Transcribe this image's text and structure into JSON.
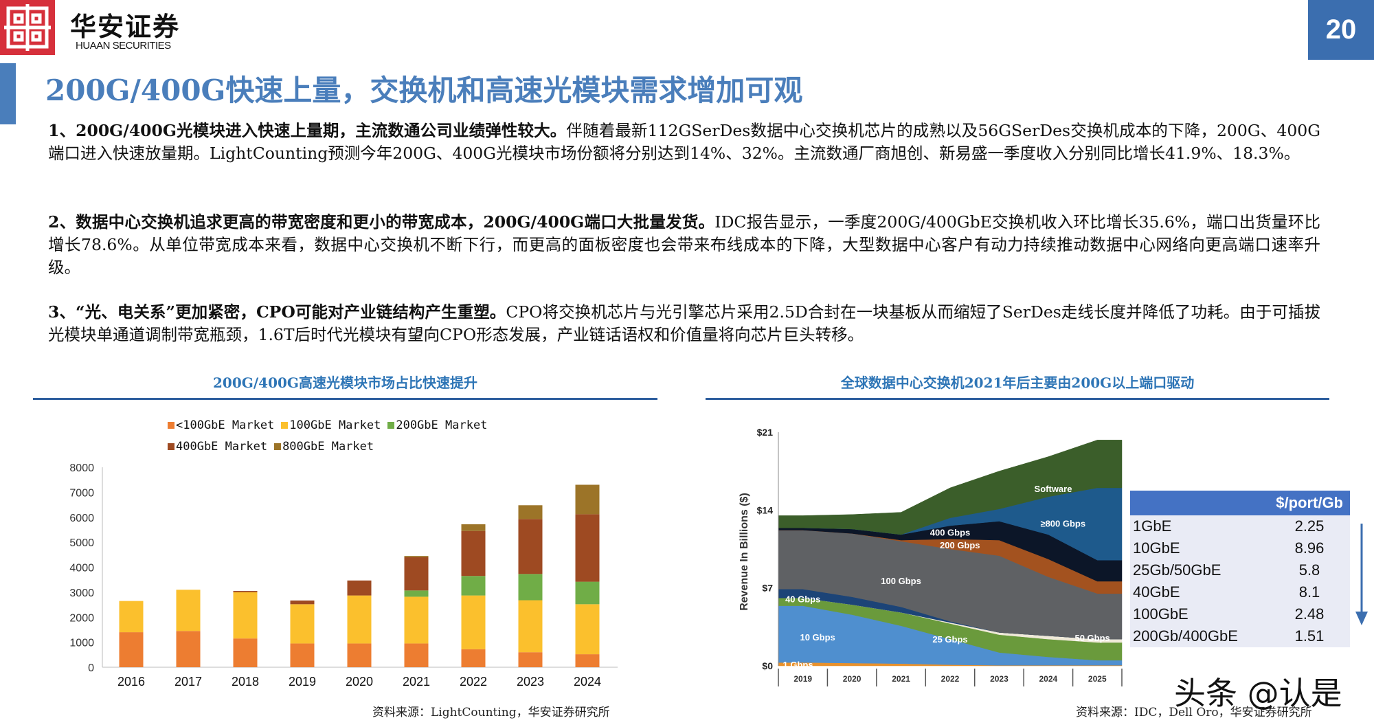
{
  "header": {
    "logo_cn": "华安证券",
    "logo_en": "HUAAN SECURITIES",
    "page_number": "20",
    "colors": {
      "logo": "#d6303b",
      "accent": "#4a7ebb"
    }
  },
  "title": "200G/400G快速上量，交换机和高速光模块需求增加可观",
  "paragraphs": [
    {
      "lead": "1、200G/400G光模块进入快速上量期，主流数通公司业绩弹性较大。",
      "body": "伴随着最新112GSerDes数据中心交换机芯片的成熟以及56GSerDes交换机成本的下降，200G、400G端口进入快速放量期。LightCounting预测今年200G、400G光模块市场份额将分别达到14%、32%。主流数通厂商旭创、新易盛一季度收入分别同比增长41.9%、18.3%。"
    },
    {
      "lead": "2、数据中心交换机追求更高的带宽密度和更小的带宽成本，200G/400G端口大批量发货。",
      "body": "IDC报告显示，一季度200G/400GbE交换机收入环比增长35.6%，端口出货量环比增长78.6%。从单位带宽成本来看，数据中心交换机不断下行，而更高的面板密度也会带来布线成本的下降，大型数据中心客户有动力持续推动数据中心网络向更高端口速率升级。"
    },
    {
      "lead": "3、“光、电关系”更加紧密，CPO可能对产业链结构产生重塑。",
      "body": "CPO将交换机芯片与光引擎芯片采用2.5D合封在一块基板从而缩短了SerDes走线长度并降低了功耗。由于可插拔光模块单通道调制带宽瓶颈，1.6T后时代光模块有望向CPO形态发展，产业链话语权和价值量将向芯片巨头转移。"
    }
  ],
  "left_panel": {
    "title": "200G/400G高速光模块市场占比快速提升",
    "source": "资料来源：LightCounting，华安证券研究所"
  },
  "right_panel": {
    "title": "全球数据中心交换机2021年后主要由200G以上端口驱动",
    "source": "资料来源：IDC，Dell Oro，华安证券研究所",
    "table": {
      "header": "$/port/Gb",
      "rows": [
        {
          "label": "1GbE",
          "value": "2.25"
        },
        {
          "label": "10GbE",
          "value": "8.96"
        },
        {
          "label": "25Gb/50GbE",
          "value": "5.8"
        },
        {
          "label": "40GbE",
          "value": "8.1"
        },
        {
          "label": "100GbE",
          "value": "2.48"
        },
        {
          "label": "200Gb/400GbE",
          "value": "1.51"
        }
      ],
      "colors": {
        "header": "#4472c4",
        "body": "#e9ebf5"
      }
    },
    "trend_arrow": "down-arrow-icon"
  },
  "watermark": "头条 @认是",
  "chart_data": [
    {
      "type": "bar",
      "stacked": true,
      "categories": [
        "2016",
        "2017",
        "2018",
        "2019",
        "2020",
        "2021",
        "2022",
        "2023",
        "2024"
      ],
      "series": [
        {
          "name": "<100GbE Market",
          "color": "#ed7d31",
          "values": [
            1400,
            1450,
            1150,
            950,
            950,
            950,
            720,
            600,
            520
          ]
        },
        {
          "name": "100GbE Market",
          "color": "#fbc02d",
          "values": [
            1250,
            1650,
            1850,
            1570,
            1920,
            1870,
            2150,
            2080,
            2000
          ]
        },
        {
          "name": "200GbE Market",
          "color": "#70ad47",
          "values": [
            0,
            0,
            0,
            0,
            0,
            250,
            780,
            1050,
            900
          ]
        },
        {
          "name": "400GbE Market",
          "color": "#9e4a22",
          "values": [
            0,
            0,
            50,
            150,
            600,
            1330,
            1800,
            2200,
            2700
          ]
        },
        {
          "name": "800GbE Market",
          "color": "#9c7428",
          "values": [
            0,
            0,
            0,
            0,
            0,
            50,
            270,
            550,
            1180
          ]
        }
      ],
      "ylim": [
        0,
        8000
      ],
      "yticks": [
        "0",
        "1000",
        "2000",
        "3000",
        "4000",
        "5000",
        "6000",
        "7000",
        "8000"
      ],
      "legend": "top",
      "grid": false
    },
    {
      "type": "area",
      "stacked": true,
      "categories": [
        "2019",
        "2020",
        "2021",
        "2022",
        "2023",
        "2024",
        "2025"
      ],
      "ylabel": "Revenue In Billions ($)",
      "ylim": [
        0,
        21
      ],
      "yticks": [
        "$0",
        "$7",
        "$14",
        "$21"
      ],
      "series": [
        {
          "name": "1 Gbps",
          "color": "#e8912c",
          "values": [
            0.3,
            0.25,
            0.2,
            0.1,
            0.05,
            0.05,
            0.05
          ]
        },
        {
          "name": "10 Gbps",
          "color": "#4f8fcf",
          "values": [
            5.1,
            4.35,
            3.4,
            2.3,
            1.15,
            0.75,
            0.45
          ]
        },
        {
          "name": "25 Gbps",
          "color": "#6a9a3c",
          "values": [
            0.7,
            0.9,
            1.2,
            1.4,
            1.6,
            1.6,
            1.6
          ]
        },
        {
          "name": "50 Gbps",
          "color": "#efe9d8",
          "values": [
            0,
            0,
            0,
            0.1,
            0.2,
            0.3,
            0.3
          ]
        },
        {
          "name": "40 Gbps",
          "color": "#1c4477",
          "values": [
            0.8,
            0.7,
            0.5,
            0.1,
            0,
            0,
            0
          ]
        },
        {
          "name": "100 Gbps",
          "color": "#5f6164",
          "values": [
            5.3,
            5.7,
            5.9,
            6.5,
            6.9,
            5.3,
            4.1
          ]
        },
        {
          "name": "200 Gbps",
          "color": "#a3521f",
          "values": [
            0,
            0,
            0.1,
            0.9,
            1.4,
            1.6,
            1.1
          ]
        },
        {
          "name": "400 Gbps",
          "color": "#0c1628",
          "values": [
            0.2,
            0.4,
            0.5,
            1.2,
            1.7,
            2.2,
            1.9
          ]
        },
        {
          "name": "≥800 Gbps",
          "color": "#1e5a8c",
          "values": [
            0,
            0,
            0,
            0.7,
            1.1,
            3.4,
            6.5
          ]
        },
        {
          "name": "Software",
          "color": "#3b5e2a",
          "values": [
            1.1,
            1.3,
            2.0,
            2.7,
            3.4,
            3.6,
            4.3
          ]
        }
      ],
      "grid": false
    }
  ]
}
